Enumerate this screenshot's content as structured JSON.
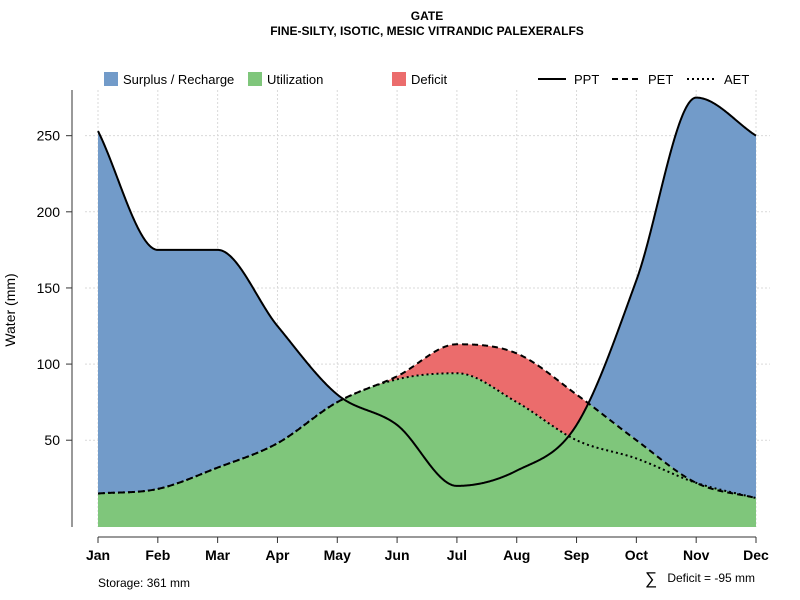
{
  "chart_data": {
    "type": "area",
    "title": "GATE",
    "subtitle": "FINE-SILTY, ISOTIC, MESIC VITRANDIC PALEXERALFS",
    "xlabel": "",
    "ylabel": "Water (mm)",
    "categories": [
      "Jan",
      "Feb",
      "Mar",
      "Apr",
      "May",
      "Jun",
      "Jul",
      "Aug",
      "Sep",
      "Oct",
      "Nov",
      "Dec"
    ],
    "ylim": [
      -7,
      280
    ],
    "yticks": [
      50,
      100,
      150,
      200,
      250
    ],
    "grid": true,
    "series": [
      {
        "name": "PPT",
        "values": [
          253,
          175,
          175,
          125,
          80,
          60,
          20,
          30,
          60,
          155,
          275,
          250
        ]
      },
      {
        "name": "PET",
        "values": [
          15,
          18,
          32,
          48,
          75,
          92,
          113,
          107,
          80,
          50,
          22,
          12
        ]
      },
      {
        "name": "AET",
        "values": [
          15,
          18,
          32,
          48,
          75,
          90,
          94,
          75,
          50,
          38,
          22,
          12
        ]
      }
    ],
    "legend": {
      "position": "top",
      "areas": [
        {
          "label": "Surplus / Recharge",
          "color": "#729BC9"
        },
        {
          "label": "Utilization",
          "color": "#7FC67B"
        },
        {
          "label": "Deficit",
          "color": "#EB6C6C"
        }
      ],
      "lines": [
        {
          "label": "PPT",
          "style": "solid"
        },
        {
          "label": "PET",
          "style": "dashed"
        },
        {
          "label": "AET",
          "style": "dotted"
        }
      ]
    },
    "annotations": {
      "storage": "Storage: 361 mm",
      "deficit_symbol": "∑",
      "deficit": "Deficit = -95 mm"
    }
  }
}
